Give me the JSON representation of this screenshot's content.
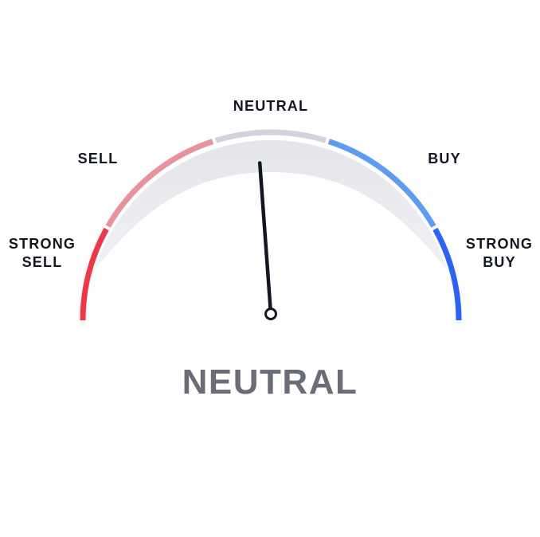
{
  "gauge": {
    "value": 0.5,
    "needle_angle_deg": -4,
    "zones": [
      {
        "id": "strong-sell",
        "line1": "STRONG",
        "line2": "SELL",
        "color": "#f23645"
      },
      {
        "id": "sell",
        "line1": "SELL",
        "color": "#e8939b"
      },
      {
        "id": "neutral",
        "line1": "NEUTRAL",
        "color": "#d1d4dc"
      },
      {
        "id": "buy",
        "line1": "BUY",
        "color": "#5b9cf6"
      },
      {
        "id": "strong-buy",
        "line1": "STRONG",
        "line2": "BUY",
        "color": "#2962ff"
      }
    ],
    "result": "NEUTRAL",
    "colors": {
      "needle": "#131722",
      "fill": "#e6e7ec",
      "text": "#131722",
      "result_text": "#6a6d78"
    }
  }
}
